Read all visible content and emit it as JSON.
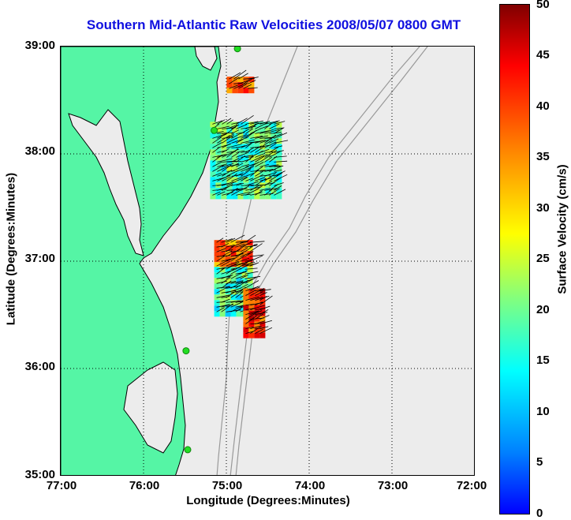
{
  "title": "Southern Mid-Atlantic Raw Velocities 2008/05/07 0800 GMT",
  "axes": {
    "xlabel": "Longitude (Degrees:Minutes)",
    "ylabel": "Latitude (Degrees:Minutes)",
    "xticks": [
      "77:00",
      "76:00",
      "75:00",
      "74:00",
      "73:00",
      "72:00"
    ],
    "yticks": [
      "39:00",
      "38:00",
      "37:00",
      "36:00",
      "35:00"
    ],
    "xlim": [
      -77,
      -72
    ],
    "ylim": [
      35,
      39
    ],
    "grid": "dotted"
  },
  "colorbar": {
    "label": "Surface Velocity (cm/s)",
    "ticks": [
      "50",
      "45",
      "40",
      "35",
      "30",
      "25",
      "20",
      "15",
      "10",
      "5",
      "0"
    ],
    "range": [
      0,
      50
    ],
    "colormap": "jet"
  },
  "colors": {
    "land": "#55f5a5",
    "water": "#ececec",
    "coastline": "#000000",
    "bathymetry": "#999999",
    "title": "#1010e0",
    "station": "#22dd22"
  },
  "stations": [
    {
      "lon": -74.87,
      "lat": 38.98
    },
    {
      "lon": -75.15,
      "lat": 38.22
    },
    {
      "lon": -75.49,
      "lat": 36.17
    },
    {
      "lon": -75.47,
      "lat": 35.25
    }
  ],
  "chart_data": {
    "type": "heatmap",
    "title": "Southern Mid-Atlantic Raw Velocities 2008/05/07 0800 GMT",
    "xlabel": "Longitude (Degrees:Minutes)",
    "ylabel": "Latitude (Degrees:Minutes)",
    "colorbar_label": "Surface Velocity (cm/s)",
    "xlim": [
      -77,
      -72
    ],
    "ylim": [
      35,
      39
    ],
    "clim": [
      0,
      50
    ],
    "regions": [
      {
        "lon": [
          -75.0,
          -74.72
        ],
        "lat": [
          38.58,
          38.72
        ],
        "speed": 40
      },
      {
        "lon": [
          -75.2,
          -74.4
        ],
        "lat": [
          37.6,
          38.3
        ],
        "speed": 23
      },
      {
        "lon": [
          -75.15,
          -74.7
        ],
        "lat": [
          36.95,
          37.2
        ],
        "speed": 38
      },
      {
        "lon": [
          -75.15,
          -74.75
        ],
        "lat": [
          36.5,
          36.95
        ],
        "speed": 22
      },
      {
        "lon": [
          -74.8,
          -74.55
        ],
        "lat": [
          36.3,
          36.75
        ],
        "speed": 42
      }
    ]
  }
}
